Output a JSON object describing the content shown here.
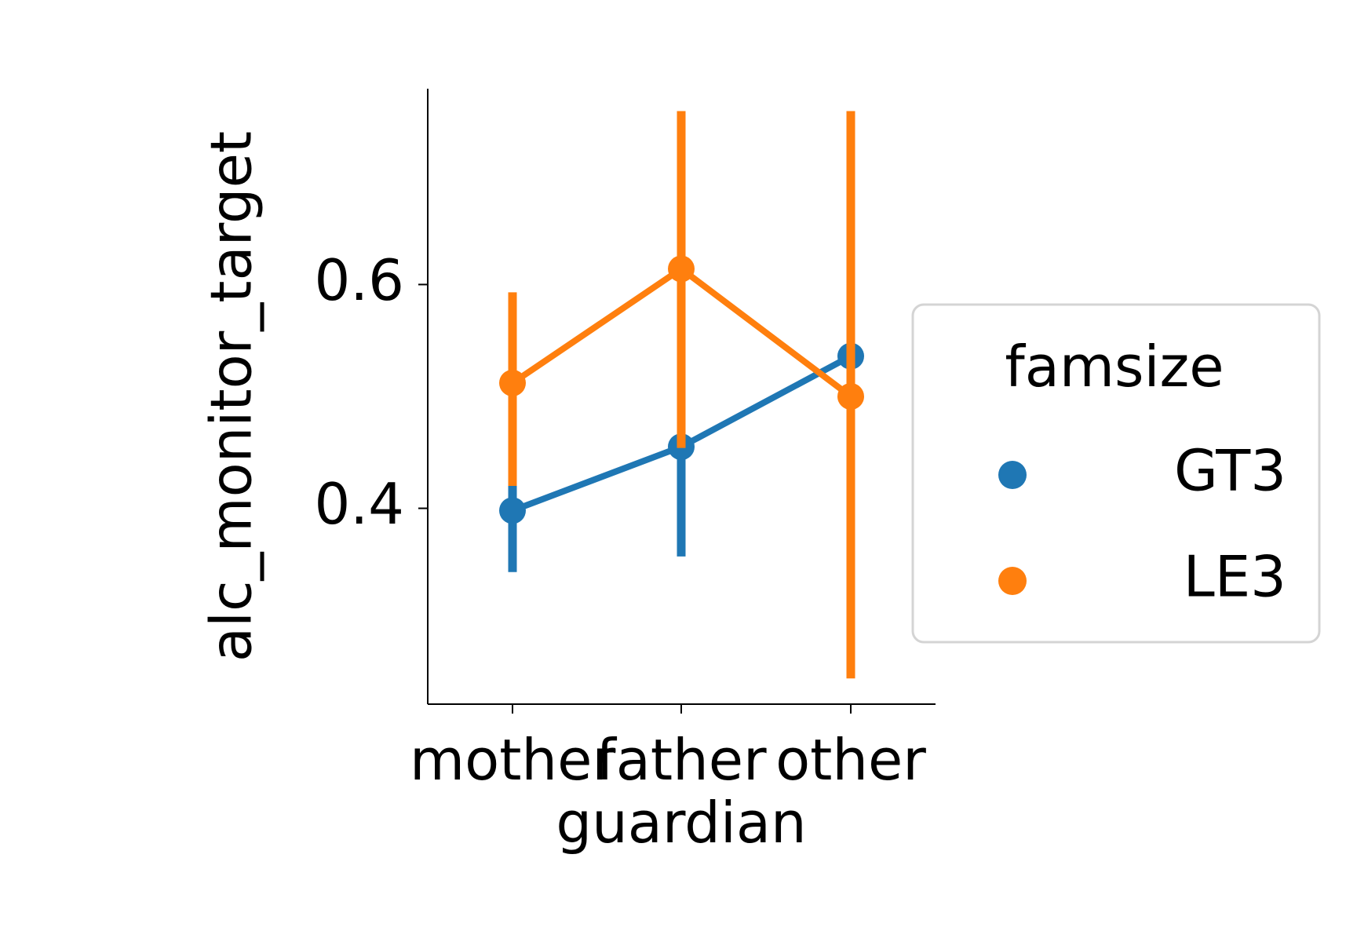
{
  "chart_data": {
    "type": "line",
    "xlabel": "guardian",
    "ylabel": "alc_monitor_target",
    "categories": [
      "mother",
      "father",
      "other"
    ],
    "ylim": [
      0.225,
      0.775
    ],
    "yticks": [
      0.4,
      0.6
    ],
    "ytick_labels": [
      "0.4",
      "0.6"
    ],
    "grid": false,
    "legend": {
      "title": "famsize",
      "placement": "right, outside plot"
    },
    "series": [
      {
        "name": "GT3",
        "color": "#1f77b4",
        "values": [
          0.398,
          0.455,
          0.536
        ],
        "ci_low": [
          0.343,
          0.357,
          0.5
        ],
        "ci_high": [
          0.425,
          0.55,
          0.578
        ]
      },
      {
        "name": "LE3",
        "color": "#ff7f0e",
        "values": [
          0.512,
          0.614,
          0.5
        ],
        "ci_low": [
          0.42,
          0.454,
          0.248
        ],
        "ci_high": [
          0.593,
          0.755,
          0.755
        ]
      }
    ]
  }
}
